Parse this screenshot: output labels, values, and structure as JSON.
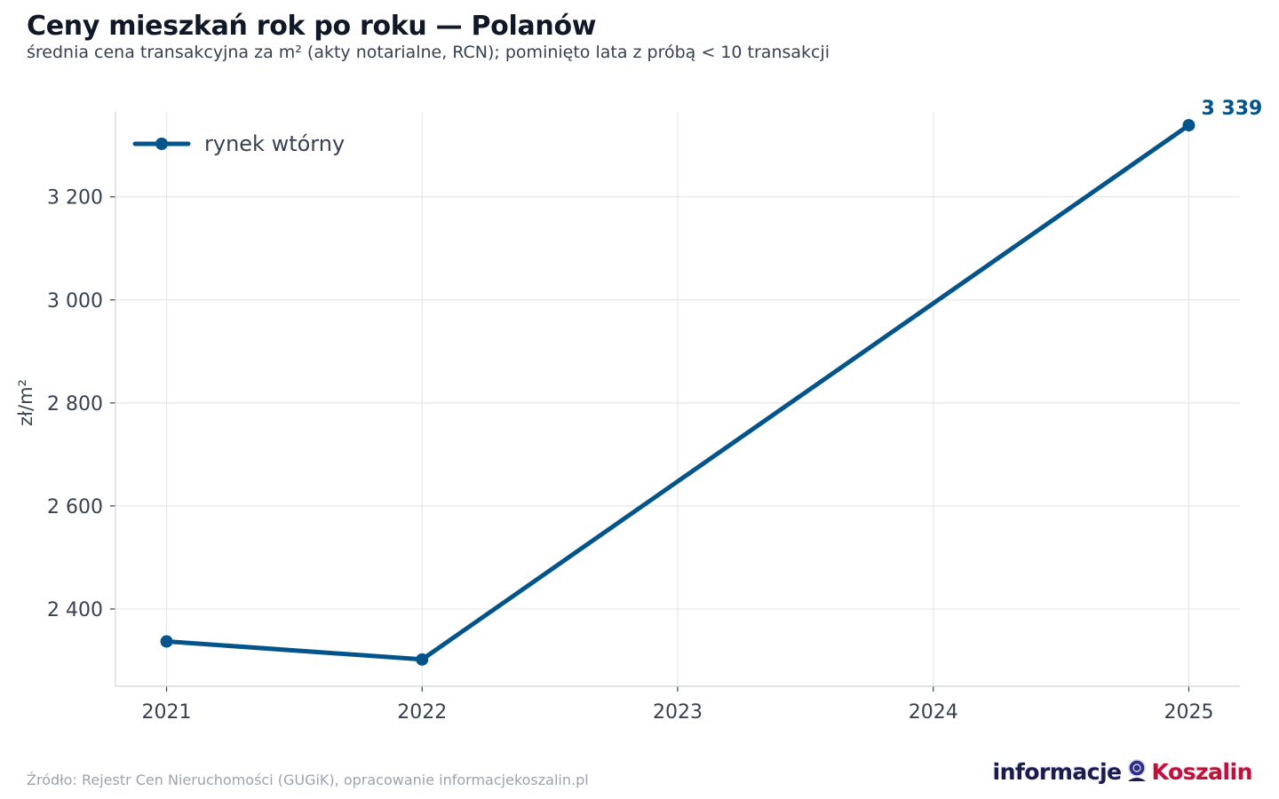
{
  "header": {
    "title": "Ceny mieszkań rok po roku — Polanów",
    "subtitle": "średnia cena transakcyjna za m² (akty notarialne, RCN); pominięto lata z próbą < 10 transakcji"
  },
  "footer": {
    "source": "Źródło: Rejestr Cen Nieruchomości (GUGiK), opracowanie informacjekoszalin.pl",
    "logo_part1": "informacje",
    "logo_part2": "Koszalin"
  },
  "colors": {
    "series": "#03548a",
    "grid": "#e5e7eb",
    "axis": "#d1d5db",
    "tick": "#374151"
  },
  "chart_data": {
    "type": "line",
    "title": "Ceny mieszkań rok po roku — Polanów",
    "subtitle": "średnia cena transakcyjna za m² (akty notarialne, RCN); pominięto lata z próbą < 10 transakcji",
    "xlabel": "",
    "ylabel": "zł/m²",
    "x": [
      2021,
      2022,
      2023,
      2024,
      2025
    ],
    "xticks": [
      "2021",
      "2022",
      "2023",
      "2024",
      "2025"
    ],
    "yticks": [
      2400,
      2600,
      2800,
      3000,
      3200
    ],
    "ytick_labels": [
      "2 400",
      "2 600",
      "2 800",
      "3 000",
      "3 200"
    ],
    "ylim": [
      2250,
      3365
    ],
    "xlim": [
      2020.8,
      2025.2
    ],
    "grid": true,
    "legend_position": "top-left",
    "series": [
      {
        "name": "rynek wtórny",
        "points": [
          {
            "x": 2021,
            "y": 2337
          },
          {
            "x": 2022,
            "y": 2302
          },
          {
            "x": 2025,
            "y": 3339
          }
        ]
      }
    ],
    "annotations": [
      {
        "x": 2025,
        "y": 3339,
        "text": "3 339"
      }
    ]
  }
}
